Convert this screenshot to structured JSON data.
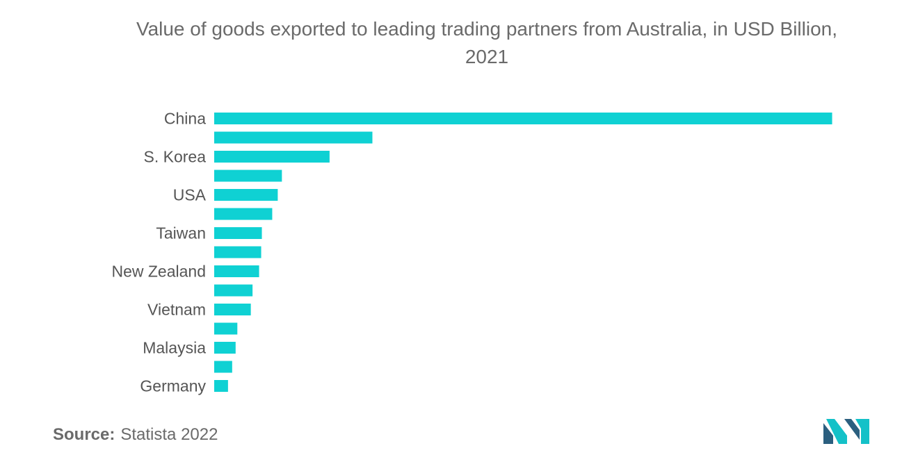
{
  "chart_data": {
    "type": "bar",
    "orientation": "horizontal",
    "title": "Value of goods exported to leading trading partners from Australia, in USD Billion,\n2021",
    "categories": [
      "China",
      "",
      "S. Korea",
      "",
      "USA",
      "",
      "Taiwan",
      "",
      "New Zealand",
      "",
      "Vietnam",
      "",
      "Malaysia",
      "",
      "Germany"
    ],
    "values": [
      178.9,
      45.8,
      33.4,
      19.6,
      18.4,
      16.8,
      13.8,
      13.6,
      13.0,
      11.1,
      10.6,
      6.7,
      6.2,
      5.2,
      4.0
    ],
    "xlim": [
      0,
      180
    ],
    "grid": false,
    "legend": "none",
    "bar_color": "#0fd1d3"
  },
  "footer": {
    "source_label": "Source:",
    "source_text": "Statista 2022"
  },
  "colors": {
    "bar": "#0fd1d3",
    "logo_dark": "#2b5f7f",
    "logo_light": "#14c1c8"
  }
}
